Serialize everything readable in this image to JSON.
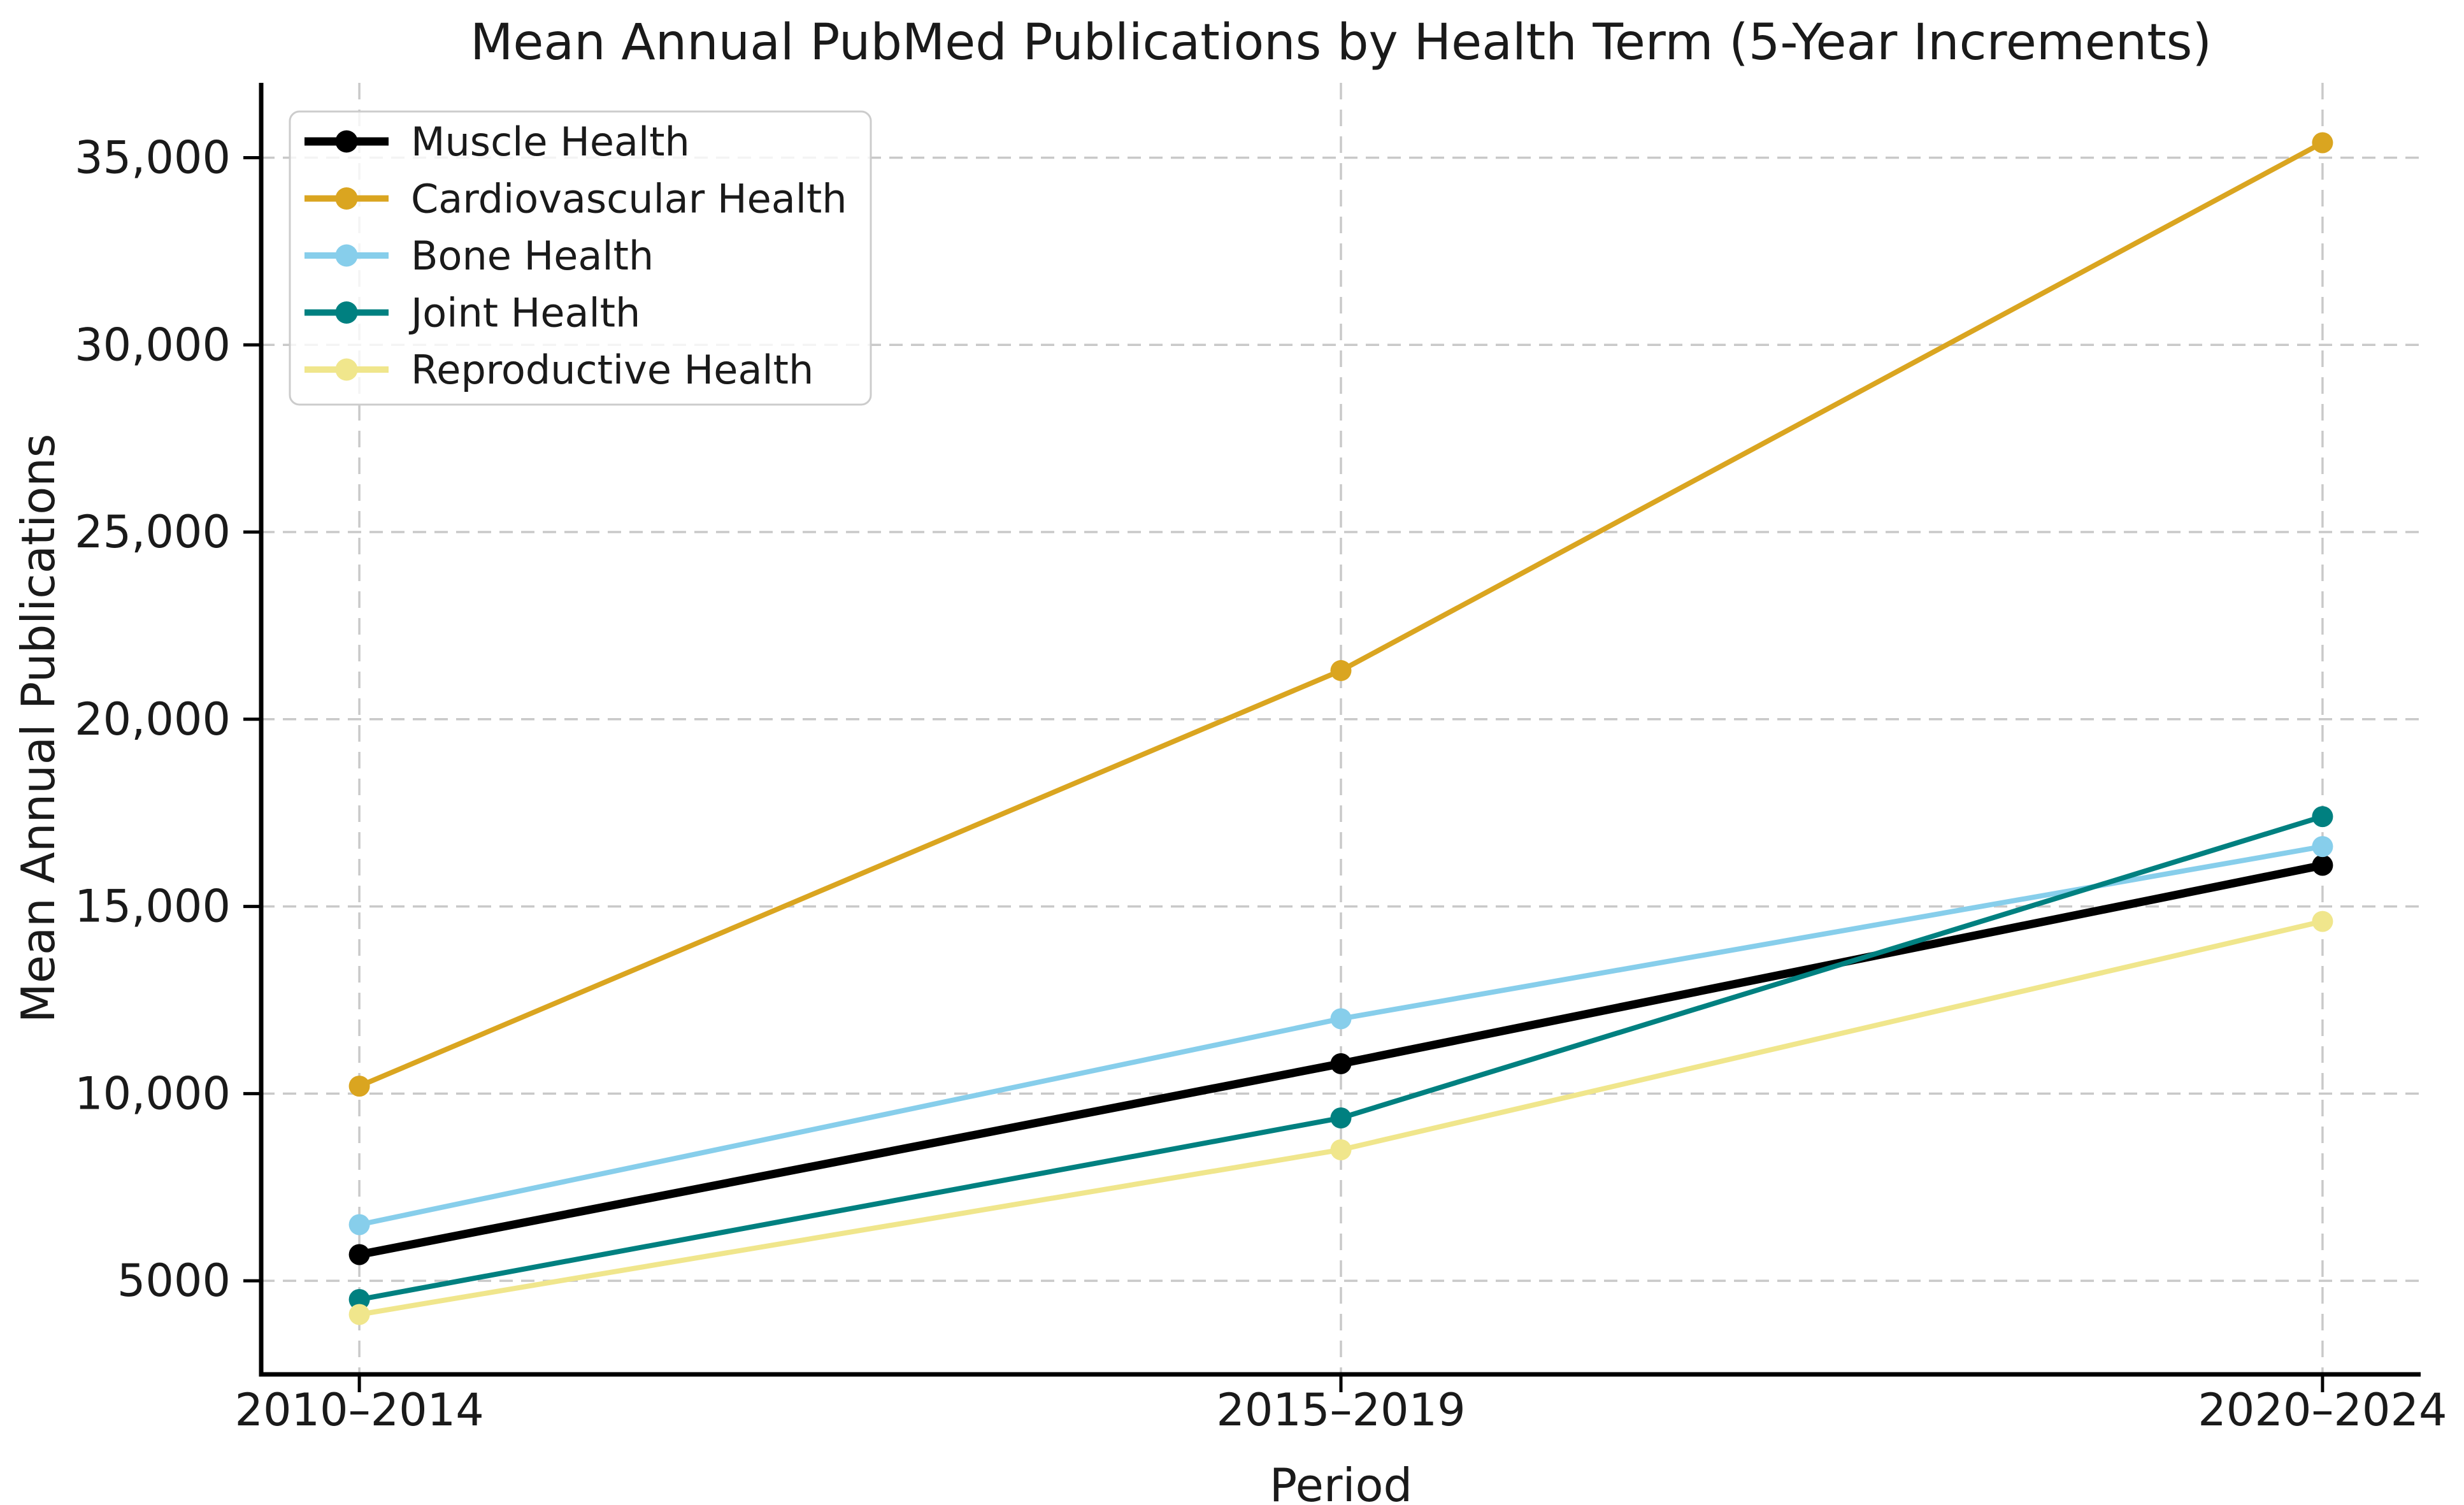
{
  "figure": {
    "background": "#ffffff"
  },
  "chart_data": {
    "type": "line",
    "title": "Mean Annual PubMed Publications by Health Term (5-Year Increments)",
    "xlabel": "Period",
    "ylabel": "Mean Annual Publications",
    "categories": [
      "2010–2014",
      "2015–2019",
      "2020–2024"
    ],
    "series": [
      {
        "name": "Muscle Health",
        "slug": "muscle-health",
        "color": "#000000",
        "line_width": 13,
        "values": [
          5700,
          10800,
          16100
        ]
      },
      {
        "name": "Cardiovascular Health",
        "slug": "cardiovascular-health",
        "color": "#DAA520",
        "line_width": 8,
        "values": [
          10200,
          21300,
          35400
        ]
      },
      {
        "name": "Bone Health",
        "slug": "bone-health",
        "color": "#87CEEB",
        "line_width": 8,
        "values": [
          6500,
          12000,
          16600
        ]
      },
      {
        "name": "Joint Health",
        "slug": "joint-health",
        "color": "#008080",
        "line_width": 8,
        "values": [
          4500,
          9350,
          17400
        ]
      },
      {
        "name": "Reproductive Health",
        "slug": "reproductive-health",
        "color": "#F0E68C",
        "line_width": 8,
        "values": [
          4100,
          8500,
          14600
        ]
      }
    ],
    "y_ticks": [
      {
        "value": 5000,
        "label": "5000"
      },
      {
        "value": 10000,
        "label": "10,000"
      },
      {
        "value": 15000,
        "label": "15,000"
      },
      {
        "value": 20000,
        "label": "20,000"
      },
      {
        "value": 25000,
        "label": "25,000"
      },
      {
        "value": 30000,
        "label": "30,000"
      },
      {
        "value": 35000,
        "label": "35,000"
      }
    ],
    "ylim": [
      2500,
      37000
    ],
    "xlim": [
      -0.1,
      2.1
    ],
    "grid": true,
    "grid_color": "#c9c9c9",
    "marker": "o",
    "legend_position": "upper left",
    "legend_border_color": "#cccccc",
    "legend_background": "rgba(255,255,255,0.8)",
    "text_color": "#1a1a1a",
    "spine_color": "#000000"
  }
}
